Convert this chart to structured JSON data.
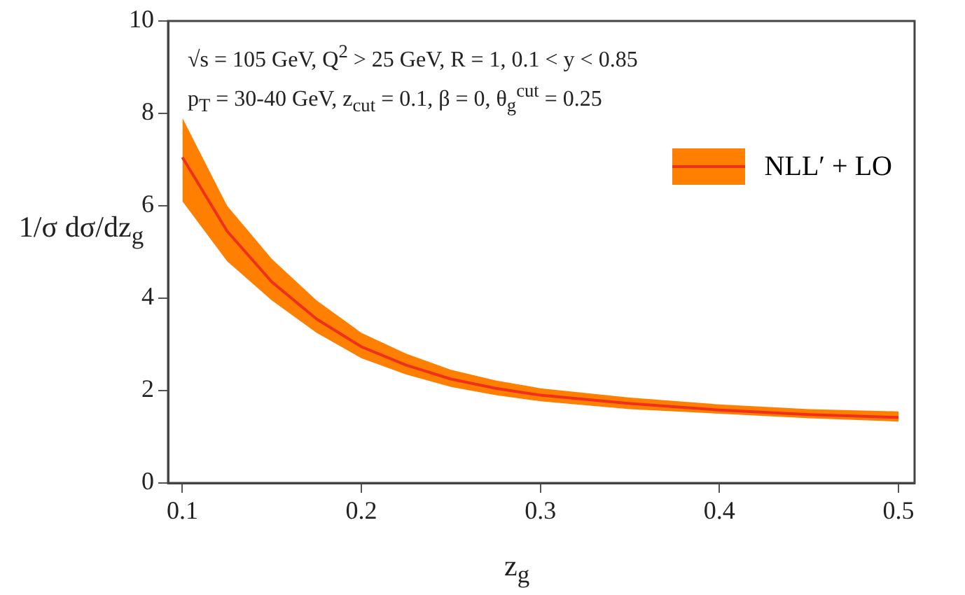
{
  "chart_data": {
    "type": "line",
    "xlabel": "z$_{g}$",
    "ylabel": "1/σ dσ/dz$_{g}$",
    "annotations": [
      "√s = 105 GeV, Q$^{2}$ > 25 GeV, R = 1,  0.1 < y < 0.85",
      "p$_{T}$ = 30-40 GeV, z$_{cut}$ = 0.1, β = 0, θ$_{g}$$^{cut}$ = 0.25"
    ],
    "x": [
      0.1,
      0.125,
      0.15,
      0.175,
      0.2,
      0.225,
      0.25,
      0.275,
      0.3,
      0.35,
      0.4,
      0.45,
      0.5
    ],
    "series": [
      {
        "name": "NLL′ + LO",
        "color": "#f0301e",
        "values": [
          7.05,
          5.45,
          4.35,
          3.55,
          2.95,
          2.55,
          2.25,
          2.05,
          1.9,
          1.72,
          1.58,
          1.48,
          1.42
        ],
        "lower": [
          6.1,
          4.8,
          3.95,
          3.25,
          2.7,
          2.35,
          2.08,
          1.9,
          1.77,
          1.6,
          1.5,
          1.4,
          1.33
        ],
        "upper": [
          7.9,
          6.0,
          4.85,
          3.95,
          3.25,
          2.8,
          2.45,
          2.22,
          2.05,
          1.85,
          1.7,
          1.6,
          1.55
        ]
      }
    ],
    "xlim": [
      0.092,
      0.509
    ],
    "xticks": [
      0.1,
      0.2,
      0.3,
      0.4,
      0.5
    ],
    "ylim": [
      0,
      10
    ],
    "yticks": [
      0,
      2,
      4,
      6,
      8,
      10
    ],
    "grid": false,
    "legend": "top right",
    "marker": "none",
    "line_style": "solid"
  }
}
